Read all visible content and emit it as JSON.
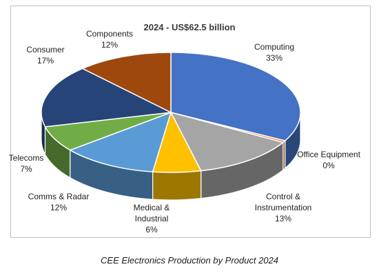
{
  "chart_data": {
    "type": "pie",
    "title": "2024 - US$62.5 billion",
    "slices": [
      {
        "label": "Computing",
        "value": 33,
        "value_label": "33%",
        "color": "#4472c4"
      },
      {
        "label": "Office Equipment",
        "value": 0.5,
        "value_label": "0%",
        "color": "#ed7d31"
      },
      {
        "label": "Control & Instrumentation",
        "value": 13,
        "value_label": "13%",
        "color": "#a5a5a5"
      },
      {
        "label": "Medical & Industrial",
        "value": 6,
        "value_label": "6%",
        "color": "#ffc000"
      },
      {
        "label": "Comms & Radar",
        "value": 12,
        "value_label": "12%",
        "color": "#5b9bd5"
      },
      {
        "label": "Telecoms",
        "value": 7,
        "value_label": "7%",
        "color": "#70ad47"
      },
      {
        "label": "Consumer",
        "value": 17,
        "value_label": "17%",
        "color": "#264478"
      },
      {
        "label": "Components",
        "value": 12,
        "value_label": "12%",
        "color": "#9e480e"
      }
    ],
    "legend": "none"
  },
  "caption": "CEE Electronics Production by Product 2024"
}
